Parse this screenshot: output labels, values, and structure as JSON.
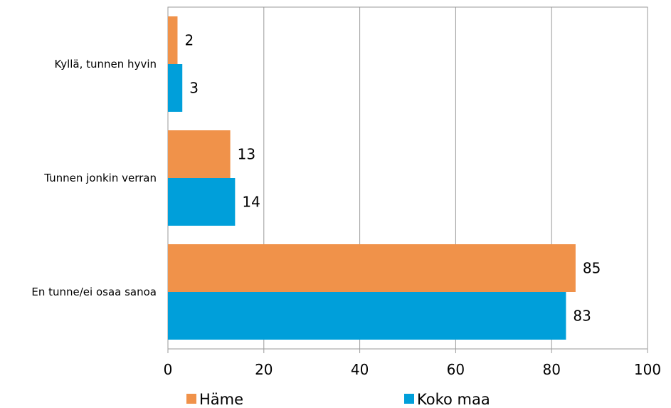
{
  "chart_data": {
    "type": "bar",
    "orientation": "horizontal",
    "categories": [
      "Kyllä, tunnen hyvin",
      "Tunnen jonkin verran",
      "En tunne/ei osaa sanoa"
    ],
    "series": [
      {
        "name": "Häme",
        "color": "#F0924A",
        "values": [
          2,
          13,
          85
        ]
      },
      {
        "name": "Koko maa",
        "color": "#009FDA",
        "values": [
          3,
          14,
          83
        ]
      }
    ],
    "xlim": [
      0,
      100
    ],
    "xticks": [
      0,
      20,
      40,
      60,
      80,
      100
    ],
    "grid": true,
    "legend_position": "bottom"
  }
}
